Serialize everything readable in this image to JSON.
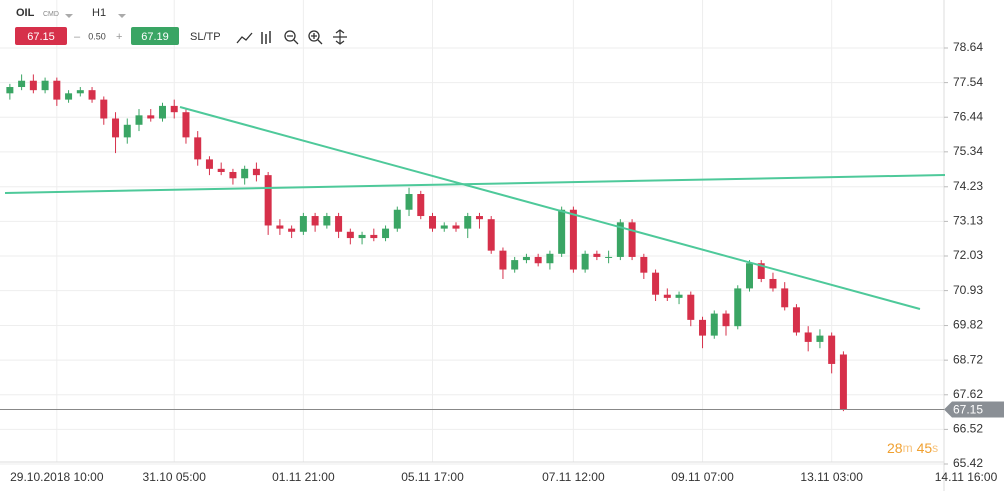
{
  "toolbar": {
    "symbol": "OIL",
    "market": "CMD",
    "interval": "H1",
    "sell": "67.15",
    "spread": "0.50",
    "buy": "67.19",
    "sltp": "SL/TP"
  },
  "countdown": {
    "minutes": "28",
    "m": "m",
    "seconds": "45",
    "s": "s"
  },
  "chart_data": {
    "type": "candlestick",
    "categories": [
      null,
      null,
      null,
      null,
      "29.10.2018 10:00",
      null,
      null,
      null,
      null,
      null,
      null,
      null,
      null,
      null,
      "31.10 05:00",
      null,
      null,
      null,
      null,
      null,
      null,
      null,
      null,
      null,
      null,
      "01.11 21:00",
      null,
      null,
      null,
      null,
      null,
      null,
      null,
      null,
      null,
      null,
      "05.11 17:00",
      null,
      null,
      null,
      null,
      null,
      null,
      null,
      null,
      null,
      null,
      null,
      "07.11 12:00",
      null,
      null,
      null,
      null,
      null,
      null,
      null,
      null,
      null,
      null,
      "09.11 07:00",
      null,
      null,
      null,
      null,
      null,
      null,
      null,
      null,
      null,
      null,
      "13.11 03:00",
      null
    ],
    "end_label": "14.11 16:00",
    "open": [
      77.2,
      77.4,
      77.6,
      77.3,
      77.6,
      77.0,
      77.2,
      77.3,
      77.0,
      76.4,
      75.8,
      76.2,
      76.5,
      76.4,
      76.8,
      76.6,
      75.8,
      75.1,
      74.8,
      74.7,
      74.5,
      74.8,
      74.6,
      73.0,
      72.9,
      72.8,
      73.3,
      73.0,
      73.3,
      72.8,
      72.6,
      72.7,
      72.6,
      72.9,
      73.5,
      74.0,
      73.3,
      72.9,
      73.0,
      72.9,
      73.3,
      73.2,
      72.2,
      71.6,
      71.9,
      72.0,
      71.8,
      72.1,
      73.5,
      71.6,
      72.1,
      72.0,
      72.0,
      73.1,
      72.0,
      71.5,
      70.8,
      70.7,
      70.8,
      70.0,
      69.5,
      70.2,
      69.8,
      71.0,
      71.8,
      71.3,
      71.0,
      70.4,
      69.6,
      69.3,
      69.5,
      68.9
    ],
    "high": [
      77.5,
      77.8,
      77.8,
      77.7,
      77.7,
      77.3,
      77.4,
      77.4,
      77.1,
      76.6,
      76.4,
      76.7,
      76.7,
      76.9,
      77.0,
      76.7,
      76.0,
      75.2,
      75.0,
      74.8,
      74.9,
      75.0,
      74.7,
      73.2,
      73.0,
      73.4,
      73.4,
      73.4,
      73.4,
      72.9,
      72.8,
      72.9,
      73.0,
      73.6,
      74.2,
      74.1,
      73.4,
      73.1,
      73.1,
      73.4,
      73.4,
      73.3,
      72.3,
      72.0,
      72.1,
      72.1,
      72.2,
      73.6,
      73.6,
      72.2,
      72.2,
      72.2,
      73.2,
      73.2,
      72.1,
      71.6,
      71.0,
      70.9,
      70.9,
      70.1,
      70.3,
      70.3,
      71.1,
      71.9,
      71.9,
      71.5,
      71.2,
      70.5,
      69.8,
      69.7,
      69.6,
      69.0
    ],
    "low": [
      77.0,
      77.3,
      77.2,
      77.2,
      76.8,
      76.9,
      77.1,
      76.9,
      76.2,
      75.3,
      75.6,
      76.0,
      76.3,
      76.3,
      76.4,
      75.6,
      74.9,
      74.6,
      74.6,
      74.3,
      74.3,
      74.4,
      72.7,
      72.7,
      72.6,
      72.7,
      72.8,
      72.9,
      72.6,
      72.4,
      72.4,
      72.5,
      72.5,
      72.8,
      73.3,
      73.2,
      72.8,
      72.8,
      72.8,
      72.6,
      72.9,
      72.1,
      71.3,
      71.5,
      71.8,
      71.7,
      71.6,
      72.0,
      71.5,
      71.5,
      71.9,
      71.8,
      71.9,
      71.9,
      71.3,
      70.6,
      70.6,
      70.5,
      69.8,
      69.1,
      69.4,
      69.5,
      69.7,
      70.9,
      71.2,
      70.9,
      70.3,
      69.5,
      69.0,
      69.1,
      68.3,
      67.1
    ],
    "close": [
      77.4,
      77.6,
      77.3,
      77.6,
      77.0,
      77.2,
      77.3,
      77.0,
      76.4,
      75.8,
      76.2,
      76.5,
      76.4,
      76.8,
      76.6,
      75.8,
      75.1,
      74.8,
      74.7,
      74.5,
      74.8,
      74.6,
      73.0,
      72.9,
      72.8,
      73.3,
      73.0,
      73.3,
      72.8,
      72.6,
      72.7,
      72.6,
      72.9,
      73.5,
      74.0,
      73.3,
      72.9,
      73.0,
      72.9,
      73.3,
      73.2,
      72.2,
      71.6,
      71.9,
      72.0,
      71.8,
      72.1,
      73.5,
      71.6,
      72.1,
      72.0,
      72.0,
      73.1,
      72.0,
      71.5,
      70.8,
      70.7,
      70.8,
      70.0,
      69.5,
      70.2,
      69.8,
      71.0,
      71.8,
      71.3,
      71.0,
      70.4,
      69.6,
      69.3,
      69.5,
      68.6,
      67.15
    ],
    "up_color": "#3aa564",
    "down_color": "#d6304a",
    "last_price": 67.15,
    "last_price_label": "67.15",
    "ylim": [
      65.42,
      78.64
    ],
    "yticks": [
      {
        "value": 78.64,
        "label": "78.64"
      },
      {
        "value": 77.54,
        "label": "77.54"
      },
      {
        "value": 76.44,
        "label": "76.44"
      },
      {
        "value": 75.34,
        "label": "75.34"
      },
      {
        "value": 74.23,
        "label": "74.23"
      },
      {
        "value": 73.13,
        "label": "73.13"
      },
      {
        "value": 72.03,
        "label": "72.03"
      },
      {
        "value": 70.93,
        "label": "70.93"
      },
      {
        "value": 69.82,
        "label": "69.82"
      },
      {
        "value": 68.72,
        "label": "68.72"
      },
      {
        "value": 67.62,
        "label": "67.62"
      },
      {
        "value": 66.52,
        "label": "66.52"
      },
      {
        "value": 65.42,
        "label": "65.42"
      }
    ],
    "grid": true
  }
}
